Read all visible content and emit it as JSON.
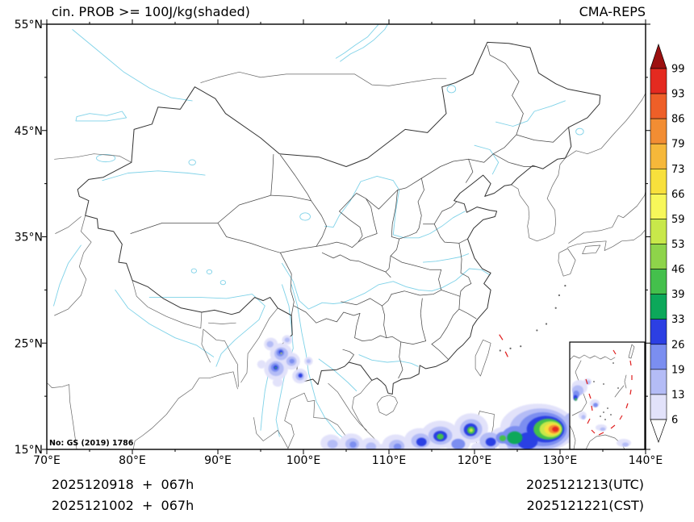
{
  "header": {
    "title": "cin. PROB >= 100J/kg(shaded)",
    "model": "CMA-REPS"
  },
  "map": {
    "note": "No: GS (2019) 1786"
  },
  "axes": {
    "lon_tick_labels": [
      "70°E",
      "80°E",
      "90°E",
      "100°E",
      "110°E",
      "120°E",
      "130°E",
      "140°E"
    ],
    "lat_tick_labels": [
      "55°N",
      "45°N",
      "35°N",
      "25°N",
      "15°N"
    ]
  },
  "colorbar": {
    "tick_labels_top_to_bottom": [
      "99",
      "93",
      "86",
      "79",
      "73",
      "66",
      "59",
      "53",
      "46",
      "39",
      "33",
      "26",
      "19",
      "13",
      "6"
    ],
    "segment_colors_low_to_high": [
      "#e2e2fa",
      "#b4bcf6",
      "#7b8ef0",
      "#2c3fe3",
      "#0ca85a",
      "#44c04c",
      "#8ed44a",
      "#c8e84a",
      "#f7f75a",
      "#f8e03c",
      "#f6b83a",
      "#f28d33",
      "#ee5f28",
      "#e42a20"
    ],
    "under_color": "#ffffff",
    "over_color": "#9c1010"
  },
  "footer": {
    "left_lines": [
      "2025120918  +  067h",
      "2025121002  +  067h"
    ],
    "right_lines": [
      "2025121213(UTC)",
      "2025121221(CST)"
    ]
  },
  "chart_data": {
    "type": "heatmap",
    "title": "cin. PROB >= 100J/kg(shaded)",
    "model": "CMA-REPS",
    "variable": "Probability of CIN >= 100 J/kg",
    "units": "%",
    "lon_range": [
      70,
      140
    ],
    "lat_range": [
      15,
      55
    ],
    "prob_levels": [
      6,
      13,
      19,
      26,
      33,
      39,
      46,
      53,
      59,
      66,
      73,
      79,
      86,
      93,
      99
    ],
    "init_times": [
      "2025120918",
      "2025121002"
    ],
    "forecast_hour": "067h",
    "valid_utc": "2025121213",
    "valid_cst": "2025121221",
    "region_format": [
      "lon",
      "lat",
      "rx_deg",
      "ry_deg",
      "prob_percent"
    ],
    "shaded_regions": [
      [
        96.2,
        24.9,
        0.8,
        0.6,
        6
      ],
      [
        96.1,
        24.9,
        0.4,
        0.3,
        13
      ],
      [
        97.4,
        24.0,
        1.3,
        1.0,
        6
      ],
      [
        97.4,
        24.0,
        0.8,
        0.6,
        13
      ],
      [
        97.3,
        24.1,
        0.45,
        0.35,
        19
      ],
      [
        97.35,
        24.15,
        0.22,
        0.18,
        26
      ],
      [
        97.4,
        24.05,
        0.1,
        0.09,
        53
      ],
      [
        96.8,
        22.6,
        1.4,
        1.1,
        6
      ],
      [
        96.8,
        22.6,
        0.9,
        0.7,
        13
      ],
      [
        96.7,
        22.7,
        0.5,
        0.4,
        19
      ],
      [
        96.75,
        22.7,
        0.25,
        0.2,
        26
      ],
      [
        96.78,
        22.68,
        0.1,
        0.08,
        39
      ],
      [
        98.6,
        23.3,
        1.0,
        0.8,
        6
      ],
      [
        98.6,
        23.3,
        0.6,
        0.45,
        13
      ],
      [
        98.65,
        23.3,
        0.3,
        0.22,
        19
      ],
      [
        99.6,
        21.9,
        0.9,
        0.7,
        6
      ],
      [
        99.6,
        21.9,
        0.5,
        0.4,
        13
      ],
      [
        99.65,
        21.95,
        0.25,
        0.2,
        26
      ],
      [
        98.1,
        25.3,
        0.6,
        0.45,
        6
      ],
      [
        98.1,
        25.3,
        0.3,
        0.22,
        13
      ],
      [
        100.6,
        23.3,
        0.5,
        0.4,
        6
      ],
      [
        100.6,
        23.3,
        0.25,
        0.2,
        13
      ],
      [
        97.0,
        21.3,
        0.6,
        0.4,
        6
      ],
      [
        95.1,
        23.0,
        0.5,
        0.4,
        6
      ],
      [
        103.2,
        15.6,
        1.2,
        0.8,
        6
      ],
      [
        103.4,
        15.5,
        0.6,
        0.4,
        13
      ],
      [
        105.6,
        15.6,
        1.4,
        0.9,
        6
      ],
      [
        105.7,
        15.5,
        0.8,
        0.55,
        13
      ],
      [
        105.8,
        15.45,
        0.4,
        0.3,
        19
      ],
      [
        107.8,
        15.3,
        1.2,
        0.8,
        6
      ],
      [
        107.9,
        15.25,
        0.6,
        0.4,
        13
      ],
      [
        110.8,
        15.4,
        1.6,
        1.0,
        6
      ],
      [
        110.9,
        15.3,
        0.9,
        0.6,
        13
      ],
      [
        111.0,
        15.25,
        0.45,
        0.3,
        19
      ],
      [
        113.6,
        15.9,
        1.8,
        1.1,
        6
      ],
      [
        113.7,
        15.8,
        1.1,
        0.7,
        13
      ],
      [
        113.8,
        15.7,
        0.6,
        0.4,
        26
      ],
      [
        116.0,
        16.4,
        2.2,
        1.3,
        6
      ],
      [
        116.0,
        16.3,
        1.4,
        0.85,
        13
      ],
      [
        116.0,
        16.25,
        0.8,
        0.5,
        26
      ],
      [
        116.0,
        16.2,
        0.4,
        0.28,
        39
      ],
      [
        118.0,
        15.6,
        1.5,
        0.9,
        6
      ],
      [
        118.1,
        15.5,
        0.8,
        0.5,
        19
      ],
      [
        119.6,
        17.0,
        2.0,
        1.4,
        6
      ],
      [
        119.6,
        16.9,
        1.3,
        0.95,
        13
      ],
      [
        119.55,
        16.85,
        0.8,
        0.6,
        26
      ],
      [
        119.6,
        16.8,
        0.45,
        0.35,
        39
      ],
      [
        119.6,
        16.8,
        0.22,
        0.17,
        53
      ],
      [
        121.8,
        15.8,
        1.2,
        0.8,
        13
      ],
      [
        121.9,
        15.7,
        0.6,
        0.4,
        26
      ],
      [
        123.3,
        16.2,
        1.4,
        0.9,
        6
      ],
      [
        123.3,
        16.1,
        0.8,
        0.55,
        19
      ],
      [
        123.3,
        16.05,
        0.4,
        0.28,
        39
      ],
      [
        127.4,
        17.0,
        4.4,
        2.3,
        6
      ],
      [
        127.7,
        16.9,
        3.6,
        1.95,
        13
      ],
      [
        128.0,
        16.9,
        2.8,
        1.6,
        19
      ],
      [
        128.3,
        16.9,
        2.2,
        1.25,
        26
      ],
      [
        128.6,
        16.9,
        1.7,
        0.98,
        39
      ],
      [
        128.9,
        16.9,
        1.3,
        0.75,
        53
      ],
      [
        129.1,
        16.9,
        0.95,
        0.56,
        66
      ],
      [
        129.3,
        16.9,
        0.65,
        0.4,
        79
      ],
      [
        129.45,
        16.9,
        0.38,
        0.24,
        93
      ],
      [
        124.8,
        16.2,
        1.6,
        1.0,
        19
      ],
      [
        124.7,
        16.1,
        0.9,
        0.6,
        33
      ],
      [
        126.2,
        15.8,
        1.2,
        0.8,
        26
      ],
      [
        131.6,
        17.7,
        1.2,
        0.8,
        13
      ],
      [
        125.0,
        15.4,
        1.2,
        0.7,
        13
      ],
      [
        104.5,
        15.1,
        1.0,
        0.5,
        6
      ],
      [
        109.3,
        15.0,
        1.2,
        0.5,
        6
      ],
      [
        112.3,
        15.1,
        1.0,
        0.45,
        6
      ],
      [
        114.8,
        15.2,
        1.2,
        0.5,
        6
      ],
      [
        120.8,
        15.2,
        1.2,
        0.5,
        6
      ],
      [
        124.3,
        15.3,
        1.5,
        0.6,
        6
      ],
      [
        127.0,
        15.1,
        1.2,
        0.5,
        6
      ],
      [
        131.0,
        16.4,
        1.5,
        0.8,
        6
      ],
      [
        132.4,
        17.3,
        1.0,
        0.6,
        6
      ]
    ]
  }
}
